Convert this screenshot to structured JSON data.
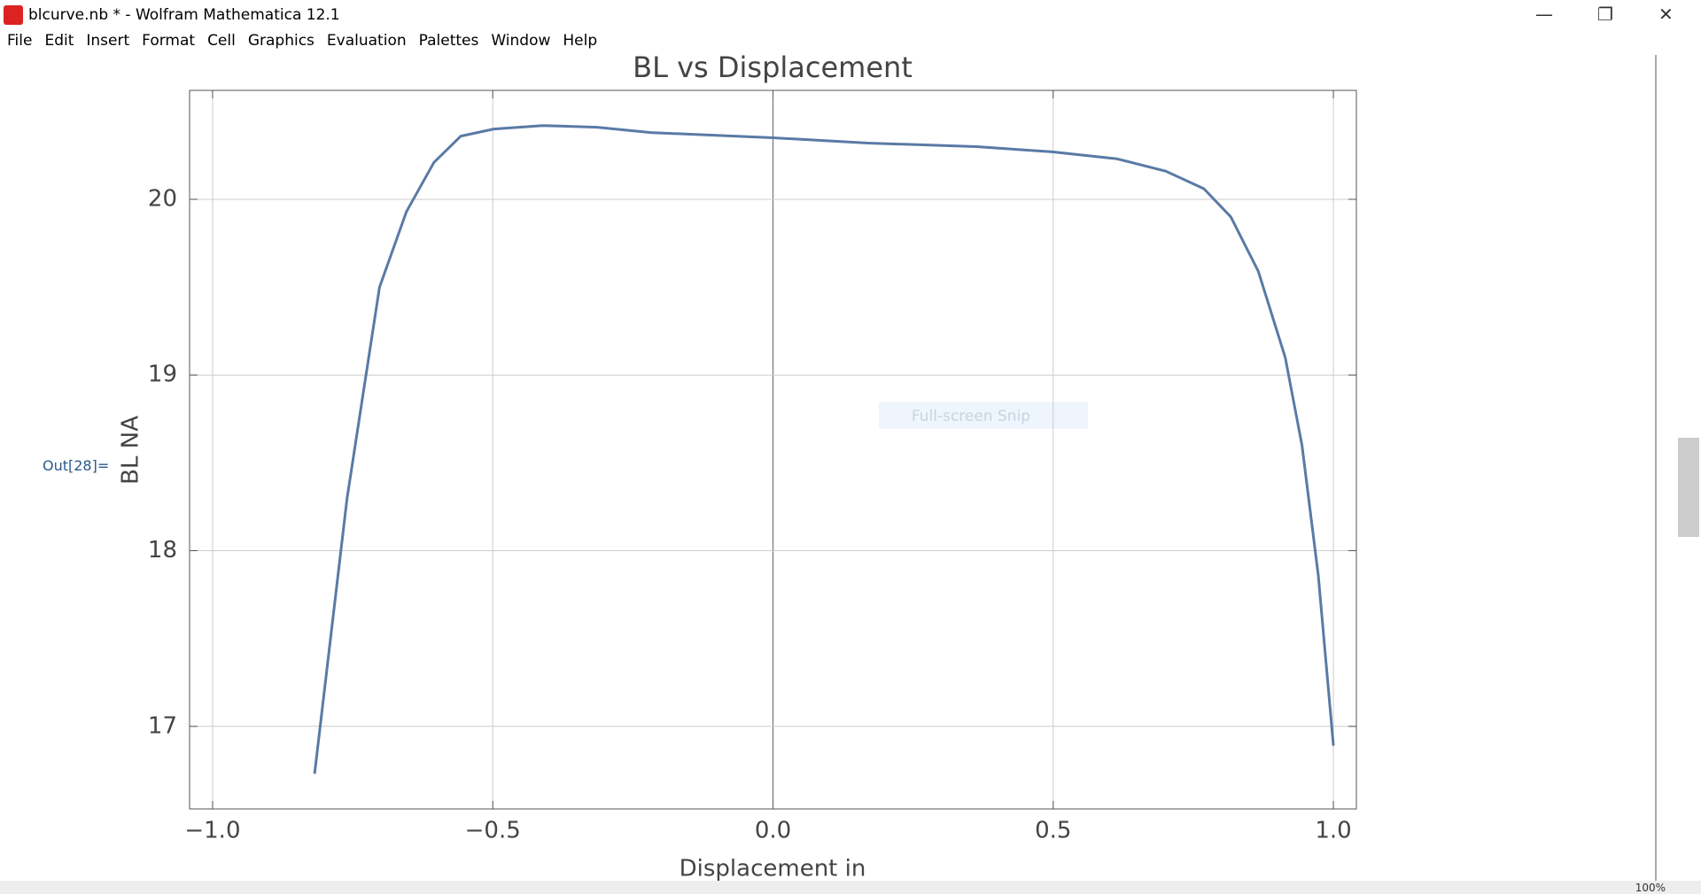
{
  "window": {
    "title": "blcurve.nb * - Wolfram Mathematica 12.1",
    "menu": [
      "File",
      "Edit",
      "Insert",
      "Format",
      "Cell",
      "Graphics",
      "Evaluation",
      "Palettes",
      "Window",
      "Help"
    ],
    "output_label": "Out[28]=",
    "overlay_text": "Full-screen Snip",
    "zoom": "100%"
  },
  "chart_data": {
    "type": "line",
    "title": "BL vs Displacement",
    "x_label": "Displacement  in",
    "y_label": "BL NA",
    "xlim": [
      -1.041,
      1.041
    ],
    "ylim": [
      16.53,
      20.62
    ],
    "xticks": [
      {
        "value": -1,
        "label": "−1.0"
      },
      {
        "value": -0.5,
        "label": "−0.5"
      },
      {
        "value": 0,
        "label": "0.0"
      },
      0.5,
      {
        "value": 1,
        "label": "1.0"
      }
    ],
    "yticks": [
      17,
      18,
      19,
      20
    ],
    "grid": true,
    "series": [
      {
        "color": "#5a7aa5",
        "x": [
          -0.818,
          -0.76,
          -0.702,
          -0.654,
          -0.605,
          -0.557,
          -0.498,
          -0.411,
          -0.314,
          -0.218,
          0,
          0.17,
          0.363,
          0.498,
          0.614,
          0.701,
          0.769,
          0.817,
          0.866,
          0.914,
          0.944,
          0.973,
          1.0
        ],
        "values": [
          16.73,
          18.3,
          19.5,
          19.93,
          20.21,
          20.36,
          20.4,
          20.42,
          20.41,
          20.38,
          20.35,
          20.32,
          20.3,
          20.27,
          20.23,
          20.16,
          20.06,
          19.9,
          19.59,
          19.1,
          18.6,
          17.86,
          16.89
        ]
      }
    ]
  }
}
